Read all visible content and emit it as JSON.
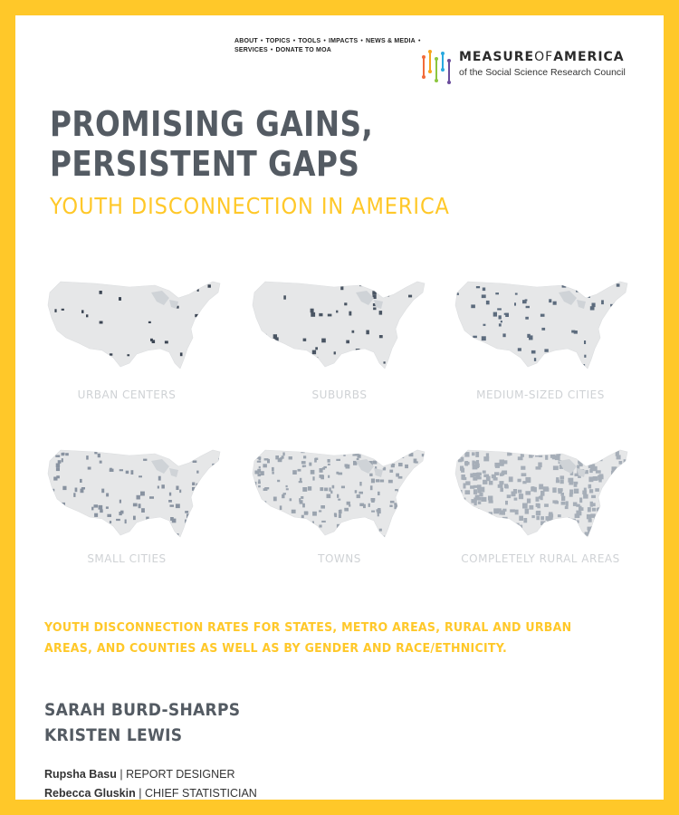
{
  "nav": {
    "line1": [
      "ABOUT",
      "TOPICS",
      "TOOLS",
      "IMPACTS",
      "NEWS & MEDIA"
    ],
    "line2": [
      "SERVICES",
      "DONATE TO MOA"
    ],
    "separator": "•"
  },
  "logo": {
    "name_part1": "MEASURE",
    "name_part2": "OF",
    "name_part3": "AMERICA",
    "tagline": "of the Social Science Research Council"
  },
  "report": {
    "title_line1": "PROMISING GAINS,",
    "title_line2": "PERSISTENT GAPS",
    "subtitle": "YOUTH DISCONNECTION IN AMERICA",
    "description": "YOUTH DISCONNECTION RATES FOR STATES, METRO AREAS, RURAL AND URBAN AREAS, AND COUNTIES AS WELL AS BY GENDER AND RACE/ETHNICITY."
  },
  "maps": [
    {
      "label": "URBAN CENTERS"
    },
    {
      "label": "SUBURBS"
    },
    {
      "label": "MEDIUM-SIZED CITIES"
    },
    {
      "label": "SMALL CITIES"
    },
    {
      "label": "TOWNS"
    },
    {
      "label": "COMPLETELY RURAL AREAS"
    }
  ],
  "authors": [
    "SARAH BURD-SHARPS",
    "KRISTEN LEWIS"
  ],
  "credits": [
    {
      "name": "Rupsha Basu",
      "sep": "|",
      "role": "REPORT DESIGNER"
    },
    {
      "name": "Rebecca Gluskin",
      "sep": "|",
      "role": "CHIEF STATISTICIAN"
    }
  ],
  "colors": {
    "frame": "#ffc829",
    "title": "#545b63",
    "accent": "#ffc829",
    "map_base": "#e6e7e8",
    "map_dark": "#3c4654",
    "map_mid": "#5c6b7d",
    "map_light": "#9aa3ae"
  }
}
